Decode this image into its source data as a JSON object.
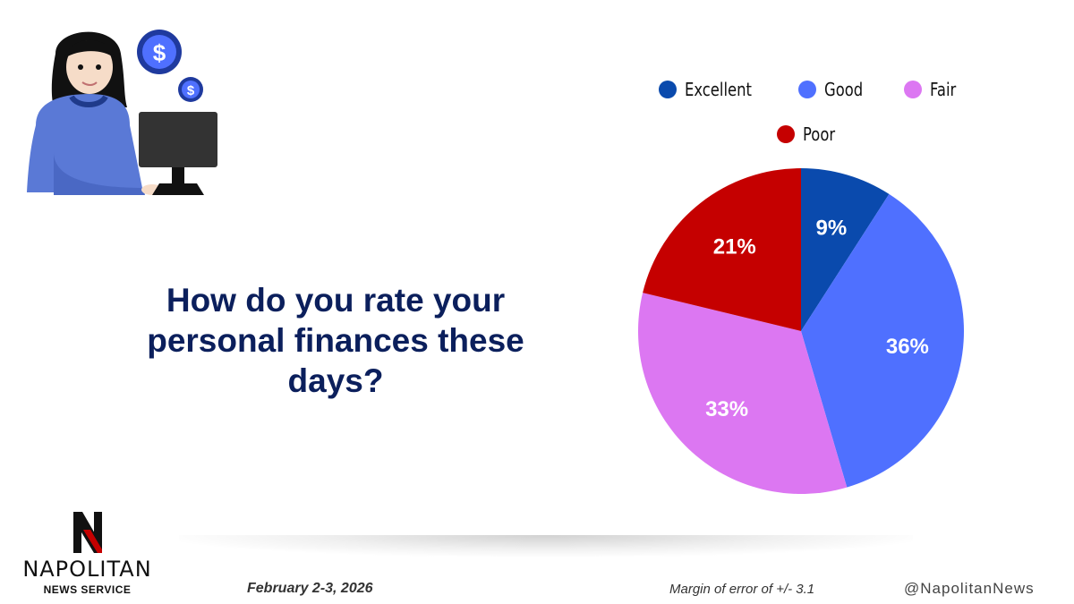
{
  "question": "How do you rate your personal finances these days?",
  "brand": {
    "name": "NAPOLITAN",
    "sub": "NEWS SERVICE"
  },
  "footer": {
    "date": "February 2-3, 2026",
    "margin": "Margin of error of +/- 3.1",
    "handle": "@NapolitanNews"
  },
  "chart_data": {
    "type": "pie",
    "title": "How do you rate your personal finances these days?",
    "categories": [
      "Excellent",
      "Good",
      "Fair",
      "Poor"
    ],
    "values": [
      9,
      36,
      33,
      21
    ],
    "labels": [
      "9%",
      "36%",
      "33%",
      "21%"
    ],
    "colors": [
      "#0a4aad",
      "#4f70ff",
      "#dc77f2",
      "#c50000"
    ],
    "legend_position": "top"
  }
}
